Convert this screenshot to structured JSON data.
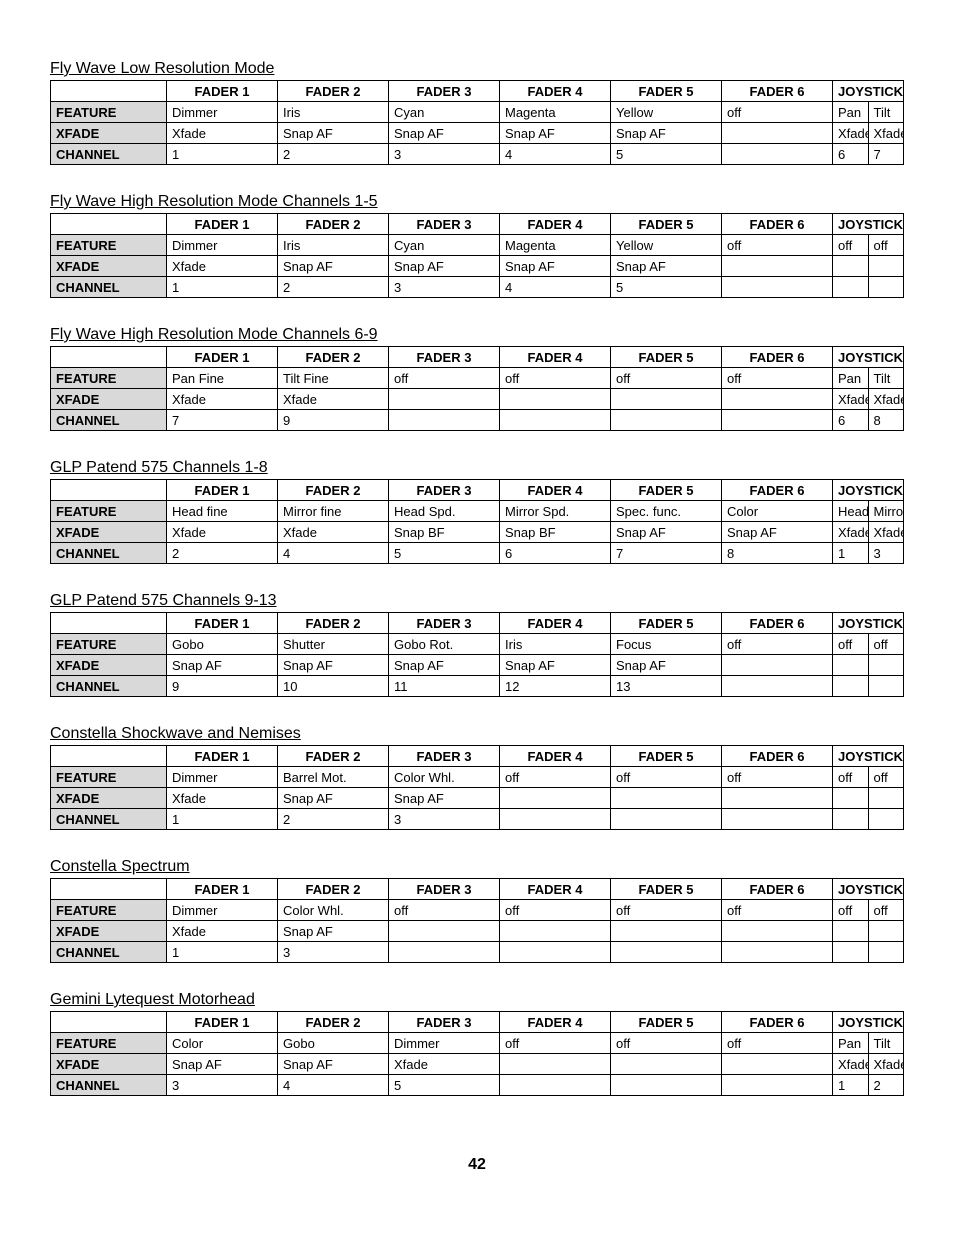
{
  "headers": [
    "FADER 1",
    "FADER 2",
    "FADER 3",
    "FADER 4",
    "FADER 5",
    "FADER 6",
    "JOYSTICK"
  ],
  "row_labels": [
    "FEATURE",
    "XFADE",
    "CHANNEL"
  ],
  "page_number": "42",
  "sections": [
    {
      "title": "Fly Wave Low Resolution Mode",
      "rows": {
        "feature": [
          "Dimmer",
          "Iris",
          "Cyan",
          "Magenta",
          "Yellow",
          "off",
          "Pan",
          "Tilt"
        ],
        "xfade": [
          "Xfade",
          "Snap AF",
          "Snap AF",
          "Snap AF",
          "Snap AF",
          "",
          "Xfade",
          "Xfade"
        ],
        "channel": [
          "1",
          "2",
          "3",
          "4",
          "5",
          "",
          "6",
          "7"
        ]
      }
    },
    {
      "title": "Fly Wave High Resolution Mode Channels 1-5",
      "rows": {
        "feature": [
          "Dimmer",
          "Iris",
          "Cyan",
          "Magenta",
          "Yellow",
          "off",
          "off",
          "off"
        ],
        "xfade": [
          "Xfade",
          "Snap AF",
          "Snap AF",
          "Snap AF",
          "Snap AF",
          "",
          "",
          ""
        ],
        "channel": [
          "1",
          "2",
          "3",
          "4",
          "5",
          "",
          "",
          ""
        ]
      }
    },
    {
      "title": "Fly Wave High Resolution Mode Channels 6-9",
      "rows": {
        "feature": [
          "Pan Fine",
          "Tilt Fine",
          "off",
          "off",
          "off",
          "off",
          "Pan",
          "Tilt"
        ],
        "xfade": [
          "Xfade",
          "Xfade",
          "",
          "",
          "",
          "",
          "Xfade",
          "Xfade"
        ],
        "channel": [
          "7",
          "9",
          "",
          "",
          "",
          "",
          "6",
          "8"
        ]
      }
    },
    {
      "title": "GLP Patend 575 Channels 1-8",
      "rows": {
        "feature": [
          "Head fine",
          "Mirror fine",
          "Head Spd.",
          "Mirror Spd.",
          "Spec. func.",
          "Color",
          "Head",
          "Mirror"
        ],
        "xfade": [
          "Xfade",
          "Xfade",
          "Snap BF",
          "Snap BF",
          "Snap AF",
          "Snap AF",
          "Xfade",
          "Xfade"
        ],
        "channel": [
          "2",
          "4",
          "5",
          "6",
          "7",
          "8",
          "1",
          "3"
        ]
      }
    },
    {
      "title": "GLP Patend 575 Channels 9-13",
      "rows": {
        "feature": [
          "Gobo",
          "Shutter",
          "Gobo Rot.",
          "Iris",
          "Focus",
          "off",
          "off",
          "off"
        ],
        "xfade": [
          "Snap AF",
          "Snap AF",
          "Snap AF",
          "Snap AF",
          "Snap AF",
          "",
          "",
          ""
        ],
        "channel": [
          "9",
          "10",
          "11",
          "12",
          "13",
          "",
          "",
          ""
        ]
      }
    },
    {
      "title": "Constella Shockwave and Nemises",
      "rows": {
        "feature": [
          "Dimmer",
          "Barrel Mot.",
          "Color Whl.",
          "off",
          "off",
          "off",
          "off",
          "off"
        ],
        "xfade": [
          "Xfade",
          "Snap AF",
          "Snap AF",
          "",
          "",
          "",
          "",
          ""
        ],
        "channel": [
          "1",
          "2",
          "3",
          "",
          "",
          "",
          "",
          ""
        ]
      }
    },
    {
      "title": "Constella Spectrum",
      "rows": {
        "feature": [
          "Dimmer",
          "Color Whl.",
          "off",
          "off",
          "off",
          "off",
          "off",
          "off"
        ],
        "xfade": [
          "Xfade",
          "Snap AF",
          "",
          "",
          "",
          "",
          "",
          ""
        ],
        "channel": [
          "1",
          "3",
          "",
          "",
          "",
          "",
          "",
          ""
        ]
      }
    },
    {
      "title": "Gemini Lytequest Motorhead",
      "rows": {
        "feature": [
          "Color",
          "Gobo",
          "Dimmer",
          "off",
          "off",
          "off",
          "Pan",
          "Tilt"
        ],
        "xfade": [
          "Snap AF",
          "Snap AF",
          "Xfade",
          "",
          "",
          "",
          "Xfade",
          "Xfade"
        ],
        "channel": [
          "3",
          "4",
          "5",
          "",
          "",
          "",
          "1",
          "2"
        ]
      }
    }
  ]
}
